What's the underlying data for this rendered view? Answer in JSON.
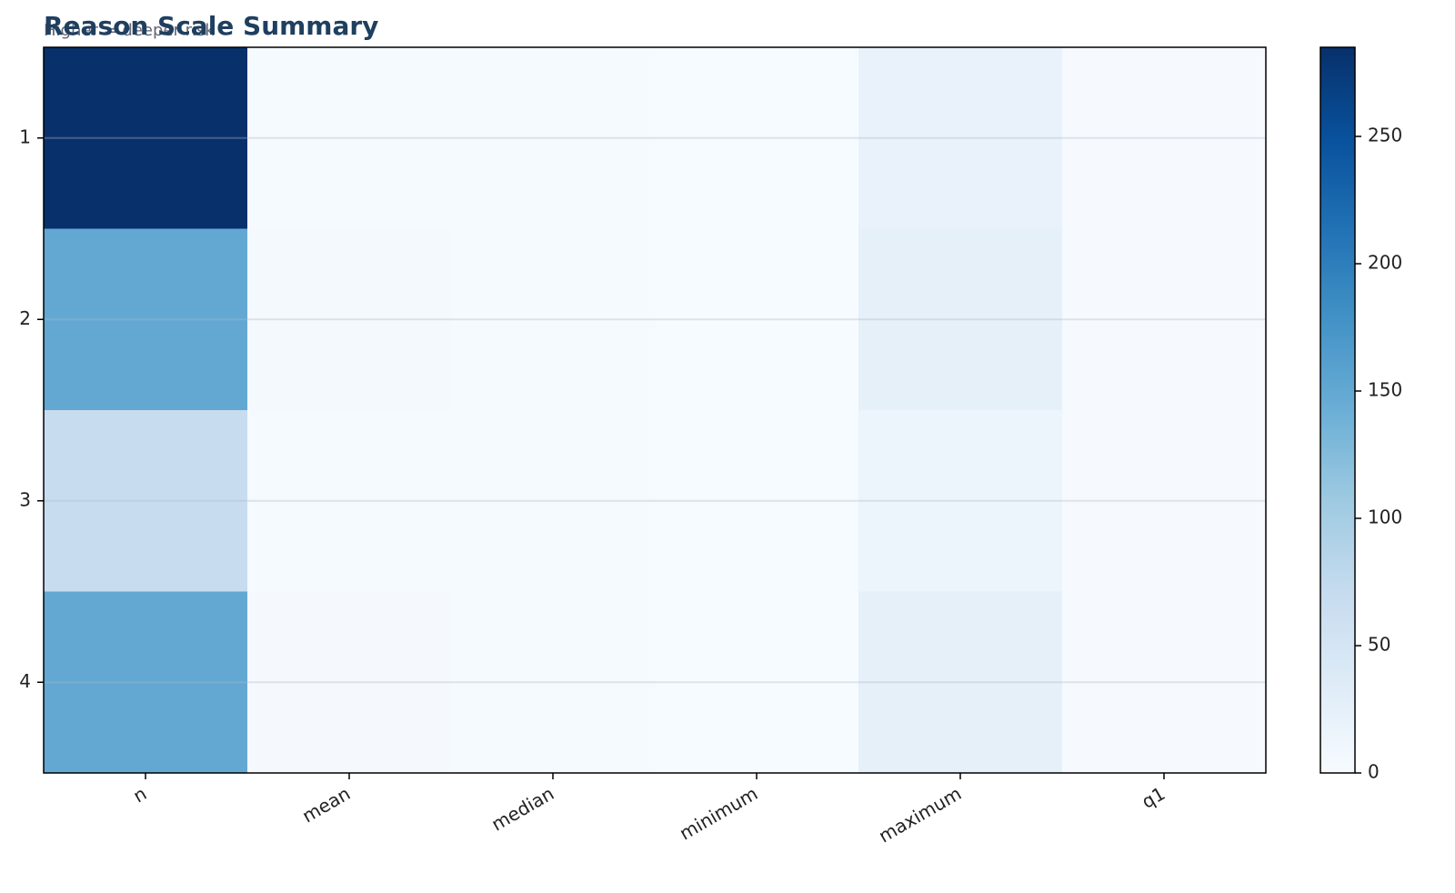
{
  "chart_data": {
    "type": "heatmap",
    "title": "Reason Scale Summary",
    "subtitle": "Higher = deeper risk",
    "x_categories": [
      "n",
      "mean",
      "median",
      "minimum",
      "maximum",
      "q1"
    ],
    "y_categories": [
      "1",
      "2",
      "3",
      "4"
    ],
    "values": [
      [
        285,
        3.2,
        3,
        1,
        20,
        2
      ],
      [
        150,
        3.6,
        3,
        1,
        25,
        2
      ],
      [
        70,
        2.8,
        3,
        1,
        15,
        2
      ],
      [
        150,
        3.4,
        3,
        1,
        25,
        2
      ]
    ],
    "colormap": "Blues",
    "zlim": [
      0,
      285
    ],
    "zticks": [
      0,
      50,
      100,
      150,
      200,
      250
    ],
    "grid": true
  }
}
